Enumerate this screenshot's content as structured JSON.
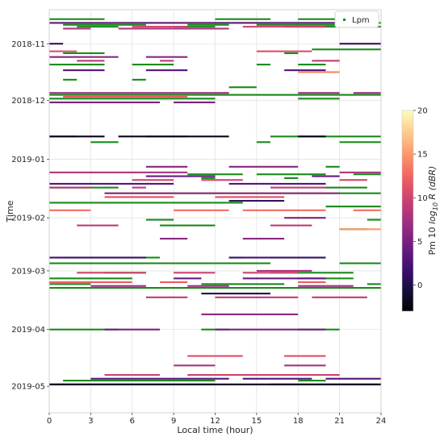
{
  "chart_data": {
    "type": "scatter",
    "xlabel": "Local time (hour)",
    "ylabel": "Time",
    "xlim": [
      0,
      24
    ],
    "x_ticks": [
      0,
      3,
      6,
      9,
      12,
      15,
      18,
      21,
      24
    ],
    "y_range_dates": [
      "2018-10-14",
      "2019-05-15"
    ],
    "y_ticks": [
      {
        "date": "2018-11-01",
        "label": "2018-11"
      },
      {
        "date": "2018-12-01",
        "label": "2018-12"
      },
      {
        "date": "2019-01-01",
        "label": "2019-01"
      },
      {
        "date": "2019-02-01",
        "label": "2019-02"
      },
      {
        "date": "2019-03-01",
        "label": "2019-03"
      },
      {
        "date": "2019-04-01",
        "label": "2019-04"
      },
      {
        "date": "2019-05-01",
        "label": "2019-05"
      }
    ],
    "grid": true,
    "legend": {
      "placement": "top-right",
      "label": "Lpm",
      "color": "#1a8a1a"
    },
    "colorbar": {
      "label_prefix": "Pm 10 ",
      "label_log": "log",
      "label_sub": "10",
      "label_r": "R",
      "label_unit": "(dBR)",
      "range": [
        -3,
        20
      ],
      "ticks": [
        0,
        5,
        10,
        15,
        20
      ],
      "colormap": "magma"
    },
    "series": [
      {
        "kind": "Lpm",
        "color": "#1a8a1a",
        "segments": [
          {
            "date": "2018-10-19",
            "x": [
              [
                0,
                4
              ],
              [
                12,
                16
              ],
              [
                18,
                21
              ]
            ]
          },
          {
            "date": "2018-10-21",
            "x": [
              [
                0,
                24
              ]
            ]
          },
          {
            "date": "2018-10-22",
            "x": [
              [
                1,
                7
              ],
              [
                10,
                13
              ],
              [
                15,
                22
              ]
            ]
          },
          {
            "date": "2018-10-23",
            "x": [
              [
                2,
                5
              ],
              [
                9,
                12
              ],
              [
                17,
                24
              ]
            ]
          },
          {
            "date": "2018-11-04",
            "x": [
              [
                19,
                24
              ]
            ]
          },
          {
            "date": "2018-11-06",
            "x": [
              [
                1,
                4
              ],
              [
                17,
                18
              ]
            ]
          },
          {
            "date": "2018-11-12",
            "x": [
              [
                0,
                4
              ],
              [
                6,
                9
              ],
              [
                15,
                16
              ],
              [
                18,
                20
              ]
            ]
          },
          {
            "date": "2018-11-20",
            "x": [
              [
                1,
                2
              ],
              [
                6,
                7
              ]
            ]
          },
          {
            "date": "2018-11-24",
            "x": [
              [
                13,
                15
              ]
            ]
          },
          {
            "date": "2018-11-28",
            "x": [
              [
                0,
                24
              ]
            ]
          },
          {
            "date": "2018-11-30",
            "x": [
              [
                0,
                12
              ],
              [
                18,
                21
              ]
            ]
          },
          {
            "date": "2018-12-20",
            "x": [
              [
                0,
                2
              ],
              [
                7,
                10
              ],
              [
                16,
                24
              ]
            ]
          },
          {
            "date": "2018-12-23",
            "x": [
              [
                3,
                5
              ],
              [
                15,
                16
              ],
              [
                21,
                24
              ]
            ]
          },
          {
            "date": "2019-01-05",
            "x": [
              [
                20,
                21
              ]
            ]
          },
          {
            "date": "2019-01-09",
            "x": [
              [
                10,
                14
              ],
              [
                15,
                20
              ],
              [
                22,
                24
              ]
            ]
          },
          {
            "date": "2019-01-11",
            "x": [
              [
                11,
                12
              ],
              [
                17,
                18
              ]
            ]
          },
          {
            "date": "2019-01-16",
            "x": [
              [
                0,
                5
              ],
              [
                20,
                23
              ]
            ]
          },
          {
            "date": "2019-01-19",
            "x": [
              [
                4,
                24
              ]
            ]
          },
          {
            "date": "2019-01-24",
            "x": [
              [
                0,
                14
              ]
            ]
          },
          {
            "date": "2019-01-26",
            "x": [
              [
                20,
                24
              ]
            ]
          },
          {
            "date": "2019-02-02",
            "x": [
              [
                7,
                9
              ],
              [
                23,
                24
              ]
            ]
          },
          {
            "date": "2019-02-05",
            "x": [
              [
                8,
                12
              ]
            ]
          },
          {
            "date": "2019-02-07",
            "x": [
              [
                21,
                23
              ]
            ]
          },
          {
            "date": "2019-02-22",
            "x": [
              [
                1,
                8
              ],
              [
                13,
                14
              ],
              [
                16,
                20
              ]
            ]
          },
          {
            "date": "2019-02-25",
            "x": [
              [
                0,
                16
              ],
              [
                21,
                24
              ]
            ]
          },
          {
            "date": "2019-03-02",
            "x": [
              [
                4,
                7
              ],
              [
                16,
                22
              ]
            ]
          },
          {
            "date": "2019-03-05",
            "x": [
              [
                0,
                6
              ],
              [
                18,
                22
              ]
            ]
          },
          {
            "date": "2019-03-08",
            "x": [
              [
                0,
                3
              ],
              [
                11,
                17
              ],
              [
                23,
                24
              ]
            ]
          },
          {
            "date": "2019-03-10",
            "x": [
              [
                0,
                24
              ]
            ]
          },
          {
            "date": "2019-04-01",
            "x": [
              [
                0,
                5
              ],
              [
                11,
                13
              ],
              [
                18,
                21
              ]
            ]
          },
          {
            "date": "2019-04-28",
            "x": [
              [
                1,
                12
              ],
              [
                18,
                20
              ]
            ]
          },
          {
            "date": "2019-04-30",
            "x": [
              [
                0,
                12
              ],
              [
                16,
                24
              ]
            ]
          }
        ]
      },
      {
        "kind": "Pm",
        "segments": [
          {
            "date": "2018-10-21",
            "x": [
              [
                0,
                23
              ]
            ],
            "v": 4
          },
          {
            "date": "2018-10-23",
            "x": [
              [
                6,
                10
              ],
              [
                14,
                20
              ]
            ],
            "v": 10
          },
          {
            "date": "2018-10-24",
            "x": [
              [
                1,
                3
              ],
              [
                5,
                13
              ]
            ],
            "v": 8
          },
          {
            "date": "2018-11-01",
            "x": [
              [
                0,
                1
              ],
              [
                21,
                24
              ]
            ],
            "v": 1
          },
          {
            "date": "2018-11-05",
            "x": [
              [
                0,
                2
              ],
              [
                15,
                19
              ]
            ],
            "v": 11
          },
          {
            "date": "2018-11-08",
            "x": [
              [
                0,
                5
              ],
              [
                7,
                10
              ]
            ],
            "v": 6
          },
          {
            "date": "2018-11-10",
            "x": [
              [
                2,
                4
              ],
              [
                8,
                9
              ],
              [
                19,
                21
              ]
            ],
            "v": 9
          },
          {
            "date": "2018-11-15",
            "x": [
              [
                1,
                4
              ],
              [
                7,
                10
              ],
              [
                17,
                20
              ]
            ],
            "v": 3
          },
          {
            "date": "2018-11-16",
            "x": [
              [
                18,
                21
              ]
            ],
            "v": 14
          },
          {
            "date": "2018-11-27",
            "x": [
              [
                0,
                13
              ],
              [
                18,
                21
              ],
              [
                22,
                24
              ]
            ],
            "v": 7
          },
          {
            "date": "2018-11-29",
            "x": [
              [
                1,
                10
              ]
            ],
            "v": 12
          },
          {
            "date": "2018-12-02",
            "x": [
              [
                0,
                8
              ],
              [
                9,
                12
              ]
            ],
            "v": 5
          },
          {
            "date": "2018-12-20",
            "x": [
              [
                0,
                4
              ],
              [
                5,
                13
              ],
              [
                18,
                20
              ]
            ],
            "v": -2
          },
          {
            "date": "2019-01-05",
            "x": [
              [
                7,
                10
              ],
              [
                13,
                18
              ]
            ],
            "v": 6
          },
          {
            "date": "2019-01-08",
            "x": [
              [
                0,
                10
              ],
              [
                21,
                24
              ]
            ],
            "v": 8
          },
          {
            "date": "2019-01-10",
            "x": [
              [
                7,
                12
              ],
              [
                19,
                21
              ]
            ],
            "v": 4
          },
          {
            "date": "2019-01-12",
            "x": [
              [
                6,
                9
              ],
              [
                11,
                14
              ],
              [
                21,
                23
              ]
            ],
            "v": 10
          },
          {
            "date": "2019-01-14",
            "x": [
              [
                0,
                9
              ],
              [
                13,
                20
              ]
            ],
            "v": 3
          },
          {
            "date": "2019-01-16",
            "x": [
              [
                0,
                3
              ],
              [
                6,
                7
              ],
              [
                16,
                20
              ]
            ],
            "v": 9
          },
          {
            "date": "2019-01-19",
            "x": [
              [
                4,
                21
              ]
            ],
            "v": 7
          },
          {
            "date": "2019-01-21",
            "x": [
              [
                4,
                9
              ],
              [
                12,
                17
              ]
            ],
            "v": 11
          },
          {
            "date": "2019-01-23",
            "x": [
              [
                13,
                17
              ]
            ],
            "v": 1
          },
          {
            "date": "2019-01-28",
            "x": [
              [
                0,
                3
              ],
              [
                9,
                13
              ],
              [
                14,
                20
              ],
              [
                22,
                24
              ]
            ],
            "v": 13
          },
          {
            "date": "2019-02-01",
            "x": [
              [
                17,
                20
              ]
            ],
            "v": 5
          },
          {
            "date": "2019-02-05",
            "x": [
              [
                2,
                5
              ],
              [
                16,
                19
              ]
            ],
            "v": 9
          },
          {
            "date": "2019-02-07",
            "x": [
              [
                21,
                24
              ]
            ],
            "v": 15
          },
          {
            "date": "2019-02-12",
            "x": [
              [
                8,
                10
              ],
              [
                14,
                17
              ]
            ],
            "v": 6
          },
          {
            "date": "2019-02-22",
            "x": [
              [
                0,
                7
              ],
              [
                13,
                20
              ]
            ],
            "v": 2
          },
          {
            "date": "2019-03-01",
            "x": [
              [
                15,
                19
              ]
            ],
            "v": 8
          },
          {
            "date": "2019-03-02",
            "x": [
              [
                2,
                7
              ],
              [
                9,
                12
              ],
              [
                14,
                18
              ]
            ],
            "v": 10
          },
          {
            "date": "2019-03-05",
            "x": [
              [
                9,
                11
              ],
              [
                14,
                20
              ]
            ],
            "v": 4
          },
          {
            "date": "2019-03-07",
            "x": [
              [
                0,
                6
              ],
              [
                8,
                10
              ],
              [
                18,
                20
              ]
            ],
            "v": 12
          },
          {
            "date": "2019-03-09",
            "x": [
              [
                3,
                7
              ],
              [
                10,
                13
              ],
              [
                18,
                22
              ]
            ],
            "v": 7
          },
          {
            "date": "2019-03-13",
            "x": [
              [
                11,
                16
              ]
            ],
            "v": 0
          },
          {
            "date": "2019-03-15",
            "x": [
              [
                7,
                10
              ],
              [
                12,
                18
              ],
              [
                19,
                23
              ]
            ],
            "v": 9
          },
          {
            "date": "2019-03-24",
            "x": [
              [
                11,
                18
              ]
            ],
            "v": 6
          },
          {
            "date": "2019-04-01",
            "x": [
              [
                4,
                8
              ],
              [
                12,
                20
              ]
            ],
            "v": 5
          },
          {
            "date": "2019-04-15",
            "x": [
              [
                10,
                14
              ],
              [
                17,
                20
              ]
            ],
            "v": 11
          },
          {
            "date": "2019-04-20",
            "x": [
              [
                9,
                12
              ],
              [
                17,
                20
              ]
            ],
            "v": 8
          },
          {
            "date": "2019-04-25",
            "x": [
              [
                4,
                8
              ],
              [
                10,
                21
              ]
            ],
            "v": 10
          },
          {
            "date": "2019-04-27",
            "x": [
              [
                3,
                13
              ],
              [
                14,
                19
              ],
              [
                20,
                24
              ]
            ],
            "v": 3
          },
          {
            "date": "2019-04-30",
            "x": [
              [
                0,
                24
              ]
            ],
            "v": -2
          }
        ]
      }
    ]
  }
}
